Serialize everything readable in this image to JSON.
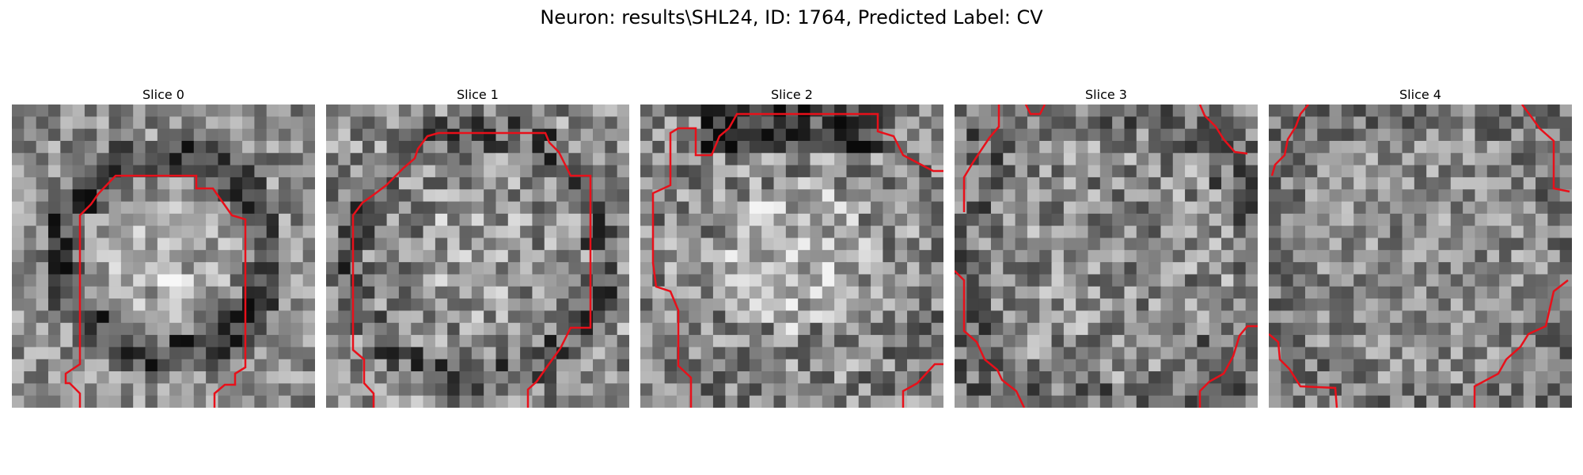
{
  "figure": {
    "title": "Neuron: results\\SHL24, ID: 1764, Predicted Label: CV"
  },
  "colors": {
    "contour": "#e8101a"
  },
  "panels": [
    {
      "title": "Slice 0",
      "seed": 11,
      "pattern": "ring_blob"
    },
    {
      "title": "Slice 1",
      "seed": 23,
      "pattern": "ring_speckle"
    },
    {
      "title": "Slice 2",
      "seed": 37,
      "pattern": "top_dark_bright_center"
    },
    {
      "title": "Slice 3",
      "seed": 51,
      "pattern": "speckle"
    },
    {
      "title": "Slice 4",
      "seed": 67,
      "pattern": "speckle_soft"
    }
  ]
}
